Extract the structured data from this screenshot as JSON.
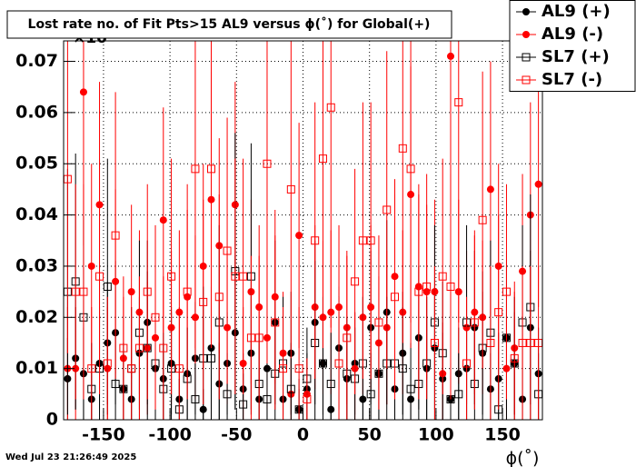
{
  "chart_data": {
    "type": "scatter",
    "title": "Lost rate no. of Fit Pts>15 AL9 versus ϕ(˚) for Global(+)",
    "axis_exponent": "×10",
    "x_label": "ϕ(˚)",
    "timestamp": "Wed Jul 23 21:26:49 2025",
    "xlim": [
      -180,
      180
    ],
    "xticks": [
      -150,
      -100,
      -50,
      0,
      50,
      100,
      150
    ],
    "ylim": [
      0,
      0.074
    ],
    "yticks": [
      0,
      0.01,
      0.02,
      0.03,
      0.04,
      0.05,
      0.06,
      0.07
    ],
    "grid": true,
    "legend": "top-right",
    "x": [
      -177,
      -171,
      -165,
      -159,
      -153,
      -147,
      -141,
      -135,
      -129,
      -123,
      -117,
      -111,
      -105,
      -99,
      -93,
      -87,
      -81,
      -75,
      -69,
      -63,
      -57,
      -51,
      -45,
      -39,
      -33,
      -27,
      -21,
      -15,
      -9,
      -3,
      3,
      9,
      15,
      21,
      27,
      33,
      39,
      45,
      51,
      57,
      63,
      69,
      75,
      81,
      87,
      93,
      99,
      105,
      111,
      117,
      123,
      129,
      135,
      141,
      147,
      153,
      159,
      165,
      171,
      177
    ],
    "series": [
      {
        "name": "AL9 (+)",
        "color": "#000000",
        "marker": "filled-circle",
        "values": [
          0.008,
          0.012,
          0.009,
          0.004,
          0.011,
          0.015,
          0.017,
          0.006,
          0.004,
          0.013,
          0.019,
          0.01,
          0.008,
          0.011,
          0.004,
          0.009,
          0.012,
          0.002,
          0.014,
          0.007,
          0.011,
          0.017,
          0.006,
          0.013,
          0.004,
          0.01,
          0.019,
          0.004,
          0.013,
          0.002,
          0.006,
          0.019,
          0.011,
          0.002,
          0.014,
          0.008,
          0.011,
          0.004,
          0.018,
          0.009,
          0.021,
          0.006,
          0.013,
          0.004,
          0.016,
          0.01,
          0.014,
          0.008,
          0.004,
          0.009,
          0.01,
          0.018,
          0.013,
          0.006,
          0.008,
          0.016,
          0.011,
          0.004,
          0.018,
          0.009
        ],
        "errors": [
          0.008,
          0.01,
          0.009,
          0.006,
          0.009,
          0.012,
          0.014,
          0.007,
          0.006,
          0.011,
          0.016,
          0.01,
          0.009,
          0.01,
          0.006,
          0.009,
          0.011,
          0.004,
          0.012,
          0.008,
          0.01,
          0.015,
          0.007,
          0.012,
          0.006,
          0.01,
          0.016,
          0.006,
          0.012,
          0.004,
          0.007,
          0.016,
          0.01,
          0.004,
          0.012,
          0.009,
          0.01,
          0.006,
          0.015,
          0.009,
          0.018,
          0.007,
          0.012,
          0.006,
          0.014,
          0.01,
          0.012,
          0.009,
          0.006,
          0.009,
          0.01,
          0.015,
          0.012,
          0.007,
          0.009,
          0.014,
          0.01,
          0.006,
          0.015,
          0.009
        ]
      },
      {
        "name": "AL9 (-)",
        "color": "#ff0000",
        "marker": "filled-circle",
        "values": [
          0.01,
          0.01,
          0.064,
          0.03,
          0.042,
          0.01,
          0.027,
          0.012,
          0.025,
          0.021,
          0.014,
          0.016,
          0.039,
          0.018,
          0.021,
          0.024,
          0.02,
          0.03,
          0.043,
          0.034,
          0.018,
          0.042,
          0.011,
          0.025,
          0.022,
          0.016,
          0.024,
          0.013,
          0.005,
          0.036,
          0.005,
          0.022,
          0.02,
          0.021,
          0.022,
          0.018,
          0.01,
          0.02,
          0.022,
          0.015,
          0.018,
          0.028,
          0.021,
          0.044,
          0.026,
          0.025,
          0.025,
          0.009,
          0.071,
          0.025,
          0.018,
          0.021,
          0.02,
          0.045,
          0.03,
          0.01,
          0.014,
          0.029,
          0.04,
          0.046
        ],
        "errors": [
          0.012,
          0.012,
          0.03,
          0.02,
          0.024,
          0.012,
          0.018,
          0.012,
          0.017,
          0.016,
          0.013,
          0.014,
          0.022,
          0.015,
          0.016,
          0.017,
          0.016,
          0.02,
          0.025,
          0.021,
          0.015,
          0.024,
          0.011,
          0.018,
          0.016,
          0.014,
          0.017,
          0.012,
          0.007,
          0.022,
          0.007,
          0.016,
          0.015,
          0.016,
          0.016,
          0.015,
          0.011,
          0.015,
          0.016,
          0.013,
          0.015,
          0.019,
          0.016,
          0.025,
          0.018,
          0.017,
          0.018,
          0.01,
          0.03,
          0.018,
          0.015,
          0.016,
          0.015,
          0.025,
          0.02,
          0.011,
          0.013,
          0.019,
          0.022,
          0.024
        ]
      },
      {
        "name": "SL7 (+)",
        "color": "#000000",
        "marker": "open-square",
        "values": [
          0.025,
          0.027,
          0.02,
          0.006,
          0.01,
          0.026,
          0.007,
          0.006,
          0.01,
          0.017,
          0.014,
          0.011,
          0.006,
          0.01,
          0.002,
          0.008,
          0.004,
          0.012,
          0.012,
          0.019,
          0.005,
          0.029,
          0.003,
          0.028,
          0.007,
          0.004,
          0.009,
          0.011,
          0.006,
          0.002,
          0.008,
          0.015,
          0.011,
          0.007,
          0.011,
          0.009,
          0.008,
          0.011,
          0.005,
          0.009,
          0.011,
          0.011,
          0.01,
          0.006,
          0.007,
          0.011,
          0.019,
          0.013,
          0.004,
          0.005,
          0.019,
          0.007,
          0.014,
          0.017,
          0.002,
          0.016,
          0.011,
          0.019,
          0.022,
          0.005
        ],
        "errors": [
          0.024,
          0.025,
          0.02,
          0.009,
          0.012,
          0.025,
          0.01,
          0.009,
          0.012,
          0.018,
          0.015,
          0.013,
          0.009,
          0.012,
          0.006,
          0.01,
          0.007,
          0.014,
          0.014,
          0.019,
          0.008,
          0.027,
          0.006,
          0.026,
          0.01,
          0.007,
          0.011,
          0.013,
          0.009,
          0.006,
          0.01,
          0.016,
          0.013,
          0.01,
          0.013,
          0.011,
          0.01,
          0.013,
          0.008,
          0.011,
          0.013,
          0.013,
          0.012,
          0.009,
          0.01,
          0.013,
          0.019,
          0.014,
          0.007,
          0.008,
          0.019,
          0.01,
          0.015,
          0.018,
          0.006,
          0.017,
          0.013,
          0.019,
          0.022,
          0.008
        ]
      },
      {
        "name": "SL7 (-)",
        "color": "#ff0000",
        "marker": "open-square",
        "values": [
          0.047,
          0.025,
          0.025,
          0.01,
          0.028,
          0.011,
          0.036,
          0.014,
          0.01,
          0.014,
          0.025,
          0.02,
          0.014,
          0.028,
          0.01,
          0.025,
          0.049,
          0.023,
          0.049,
          0.024,
          0.033,
          0.028,
          0.028,
          0.016,
          0.016,
          0.05,
          0.019,
          0.01,
          0.045,
          0.01,
          0.004,
          0.035,
          0.051,
          0.061,
          0.011,
          0.016,
          0.027,
          0.035,
          0.035,
          0.019,
          0.041,
          0.024,
          0.053,
          0.049,
          0.025,
          0.026,
          0.015,
          0.028,
          0.026,
          0.062,
          0.011,
          0.019,
          0.039,
          0.015,
          0.021,
          0.025,
          0.012,
          0.015,
          0.015,
          0.015
        ],
        "errors": [
          0.034,
          0.021,
          0.021,
          0.012,
          0.023,
          0.013,
          0.028,
          0.014,
          0.012,
          0.014,
          0.021,
          0.018,
          0.014,
          0.023,
          0.012,
          0.021,
          0.035,
          0.02,
          0.035,
          0.02,
          0.026,
          0.023,
          0.023,
          0.016,
          0.016,
          0.036,
          0.017,
          0.012,
          0.033,
          0.012,
          0.008,
          0.027,
          0.037,
          0.043,
          0.013,
          0.016,
          0.022,
          0.027,
          0.027,
          0.017,
          0.031,
          0.02,
          0.038,
          0.035,
          0.021,
          0.022,
          0.015,
          0.023,
          0.022,
          0.043,
          0.013,
          0.017,
          0.029,
          0.015,
          0.019,
          0.021,
          0.013,
          0.015,
          0.015,
          0.015
        ]
      }
    ]
  }
}
